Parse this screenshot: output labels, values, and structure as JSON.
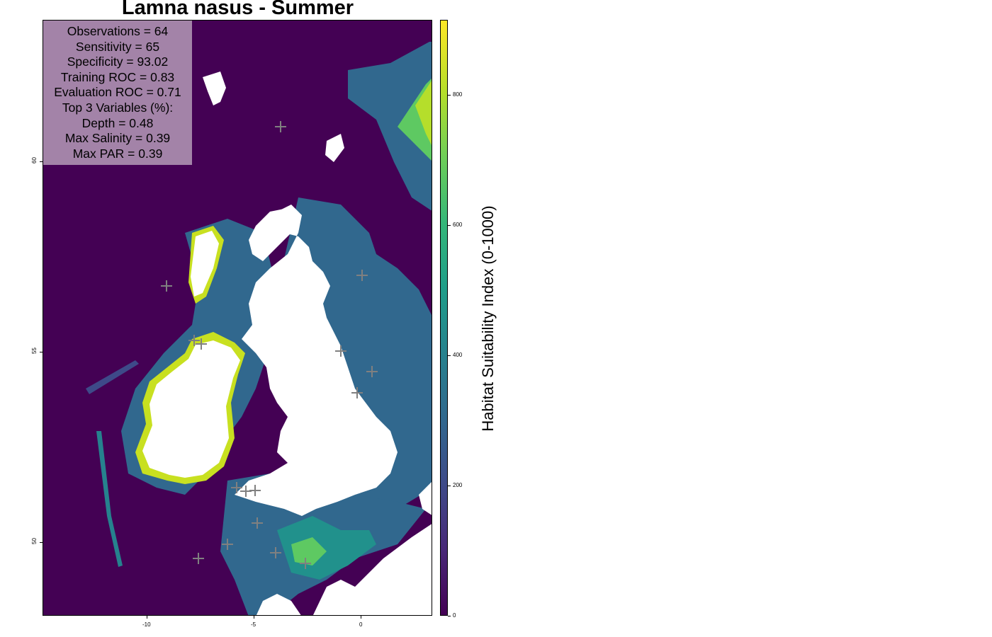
{
  "title": "Lamna nasus - Summer",
  "stats": {
    "observations": "Observations = 64",
    "sensitivity": "Sensitivity = 65",
    "specificity": "Specificity = 93.02",
    "training_roc": "Training ROC = 0.83",
    "evaluation_roc": "Evaluation ROC = 0.71",
    "top_vars_header": "Top 3 Variables (%):",
    "var1": "Depth = 0.48",
    "var2": "Max Salinity = 0.39",
    "var3": "Max PAR = 0.39"
  },
  "axes": {
    "x_ticks": [
      "-10",
      "-5",
      "0"
    ],
    "y_ticks": [
      "60",
      "55",
      "50"
    ]
  },
  "colorbar": {
    "title": "Habitat Suitability Index (0-1000)",
    "ticks": [
      "0",
      "200",
      "400",
      "600",
      "800"
    ],
    "range": [
      0,
      915
    ]
  },
  "colors": {
    "ocean_low": "#440154",
    "mid": "#31688e",
    "teal": "#21918c",
    "green": "#5ec962",
    "yellow": "#fde725",
    "land": "#ffffff",
    "stats_box": "#a383a8",
    "markers": "#808080"
  }
}
